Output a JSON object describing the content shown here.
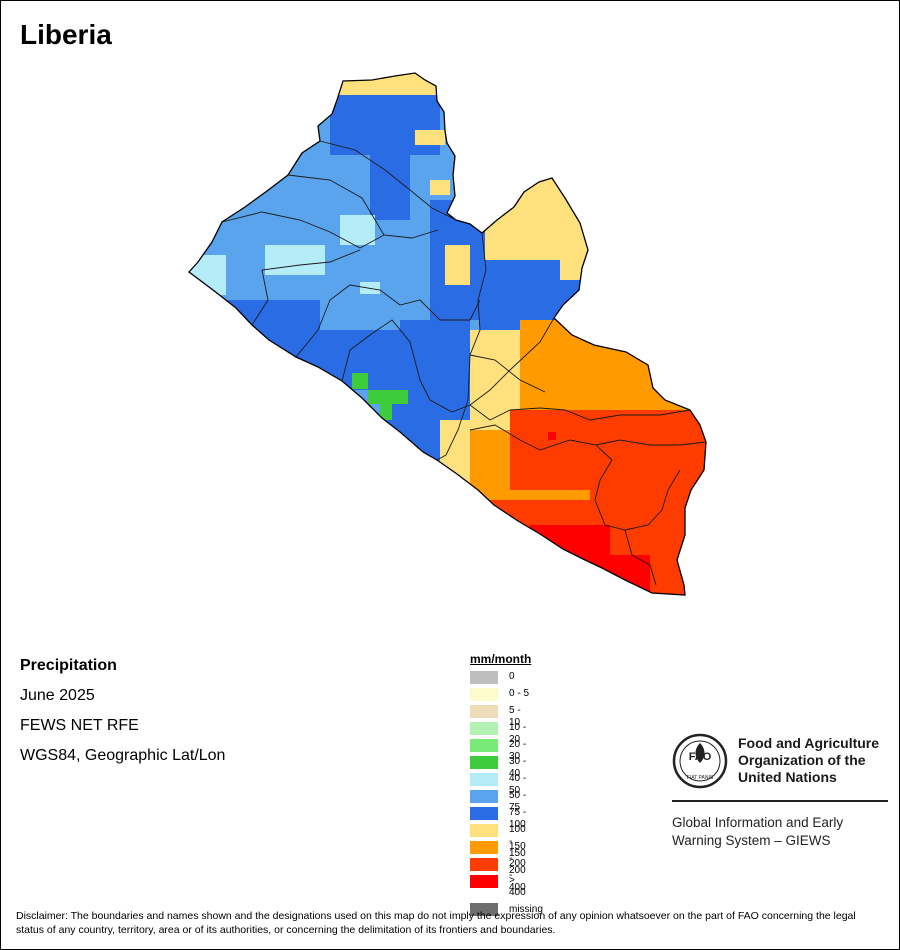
{
  "map": {
    "title": "Liberia",
    "info": {
      "variable": "Precipitation",
      "period": "June 2025",
      "source": "FEWS NET RFE",
      "projection": "WGS84, Geographic Lat/Lon"
    },
    "legend": {
      "title": "mm/month",
      "classes": [
        {
          "label": "0",
          "color": "#bebebe"
        },
        {
          "label": "0 - 5",
          "color": "#fefccc"
        },
        {
          "label": "5 - 10",
          "color": "#efdcb9"
        },
        {
          "label": "10 - 20",
          "color": "#b4f2b4"
        },
        {
          "label": "20 - 30",
          "color": "#78ea78"
        },
        {
          "label": "30 - 40",
          "color": "#3ccc3c"
        },
        {
          "label": "40 - 50",
          "color": "#b4ecf8"
        },
        {
          "label": "50 - 75",
          "color": "#5aa4ee"
        },
        {
          "label": "75 - 100",
          "color": "#2a6ce4"
        },
        {
          "label": "100 - 150",
          "color": "#fee17c"
        },
        {
          "label": "150 - 200",
          "color": "#ff9a00"
        },
        {
          "label": "200 - 400",
          "color": "#ff3c00"
        },
        {
          "label": "> 400",
          "color": "#ff0000"
        }
      ],
      "missing": {
        "label": "missing",
        "color": "#6e6e6e"
      }
    },
    "organization": {
      "logo_text": "FAO",
      "logo_ring_text": "FIAT PANIS",
      "name": "Food and Agriculture Organization of the United Nations",
      "system": "Global Information and Early Warning System – GIEWS"
    },
    "disclaimer": "Disclaimer: The boundaries and names shown and the designations used on this map do not imply the expression of any opinion whatsoever on the part of FAO concerning the legal status of any country, territory, area or of its authorities, or concerning the delimitation of its frontiers and boundaries."
  }
}
